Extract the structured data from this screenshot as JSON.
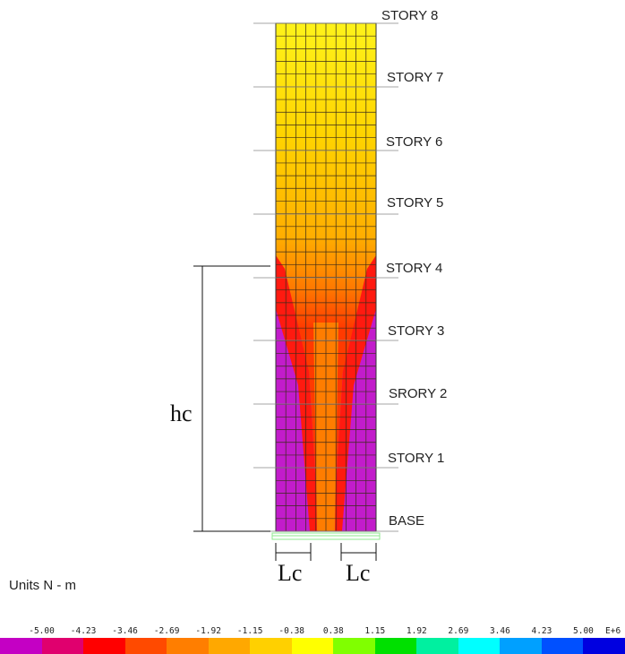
{
  "stories": [
    {
      "label": "STORY 8"
    },
    {
      "label": "STORY 7"
    },
    {
      "label": "STORY 6"
    },
    {
      "label": "STORY 5"
    },
    {
      "label": "STORY 4"
    },
    {
      "label": "STORY 3"
    },
    {
      "label": "SRORY 2"
    },
    {
      "label": "STORY 1"
    },
    {
      "label": "BASE"
    }
  ],
  "dimensions": {
    "height_label": "hc",
    "left_width_label": "Lc",
    "right_width_label": "Lc"
  },
  "units": "Units N - m",
  "scale": {
    "values": [
      "-5.00",
      "-4.23",
      "-3.46",
      "-2.69",
      "-1.92",
      "-1.15",
      "-0.38",
      "0.38",
      "1.15",
      "1.92",
      "2.69",
      "3.46",
      "4.23",
      "5.00"
    ],
    "exponent": "E+6",
    "colors": [
      "#c400c4",
      "#e0006e",
      "#ff0000",
      "#ff4a00",
      "#ff7e00",
      "#ffa800",
      "#ffd000",
      "#ffff00",
      "#80ff00",
      "#00e000",
      "#00f0a0",
      "#00ffff",
      "#00a0ff",
      "#0050ff",
      "#0000e0"
    ]
  }
}
